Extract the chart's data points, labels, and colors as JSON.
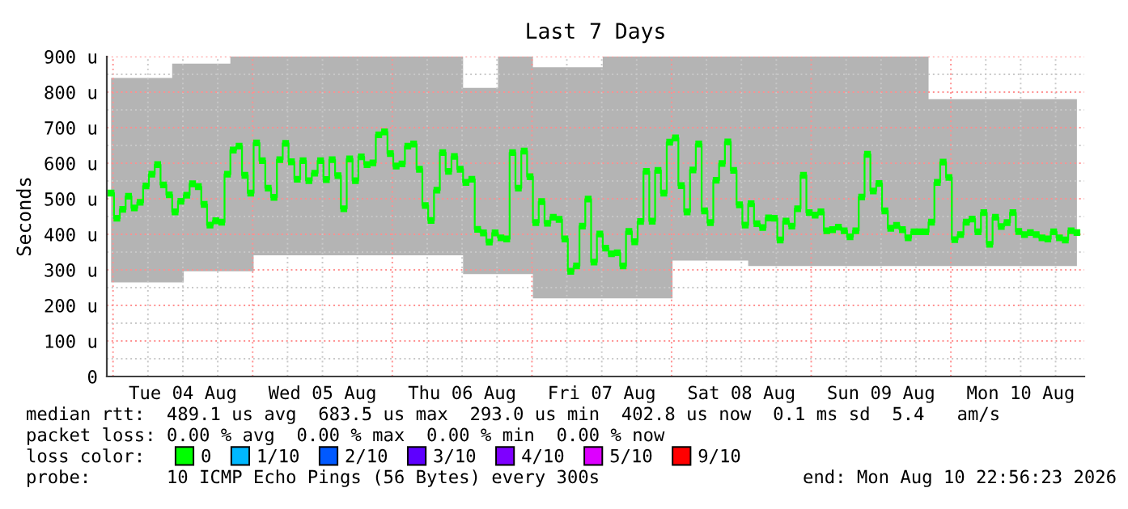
{
  "chart_data": {
    "type": "step",
    "title": "Last 7 Days",
    "ylabel": "Seconds",
    "legend_title": "loss color:",
    "annotations": [
      "median rtt:  489.1 us avg  683.5 us max  293.0 us min  402.8 us now  0.1 ms sd  5.4   am/s",
      "packet loss: 0.00 % avg  0.00 % max  0.00 % min  0.00 % now",
      "probe:       10 ICMP Echo Pings (56 Bytes) every 300s",
      "end: Mon Aug 10 22:56:23 2026"
    ],
    "xlim": [
      "2026-08-03T22:56",
      "2026-08-10T22:56"
    ],
    "xticks": [
      {
        "value": "2026-08-04T00:00",
        "label": null
      },
      {
        "value": "2026-08-04T06:00",
        "label": null
      },
      {
        "value": "2026-08-04T12:00",
        "label": "Tue 04 Aug"
      },
      {
        "value": "2026-08-04T18:00",
        "label": null
      },
      {
        "value": "2026-08-05T00:00",
        "label": null
      },
      {
        "value": "2026-08-05T06:00",
        "label": null
      },
      {
        "value": "2026-08-05T12:00",
        "label": "Wed 05 Aug"
      },
      {
        "value": "2026-08-05T18:00",
        "label": null
      },
      {
        "value": "2026-08-06T00:00",
        "label": null
      },
      {
        "value": "2026-08-06T06:00",
        "label": null
      },
      {
        "value": "2026-08-06T12:00",
        "label": "Thu 06 Aug"
      },
      {
        "value": "2026-08-06T18:00",
        "label": null
      },
      {
        "value": "2026-08-07T00:00",
        "label": null
      },
      {
        "value": "2026-08-07T06:00",
        "label": null
      },
      {
        "value": "2026-08-07T12:00",
        "label": "Fri 07 Aug"
      },
      {
        "value": "2026-08-07T18:00",
        "label": null
      },
      {
        "value": "2026-08-08T00:00",
        "label": null
      },
      {
        "value": "2026-08-08T06:00",
        "label": null
      },
      {
        "value": "2026-08-08T12:00",
        "label": "Sat 08 Aug"
      },
      {
        "value": "2026-08-08T18:00",
        "label": null
      },
      {
        "value": "2026-08-09T00:00",
        "label": null
      },
      {
        "value": "2026-08-09T06:00",
        "label": null
      },
      {
        "value": "2026-08-09T12:00",
        "label": "Sun 09 Aug"
      },
      {
        "value": "2026-08-09T18:00",
        "label": null
      },
      {
        "value": "2026-08-10T00:00",
        "label": null
      },
      {
        "value": "2026-08-10T06:00",
        "label": null
      },
      {
        "value": "2026-08-10T12:00",
        "label": "Mon 10 Aug"
      },
      {
        "value": "2026-08-10T18:00",
        "label": null
      }
    ],
    "ylim": [
      0,
      900
    ],
    "yticks": [
      0,
      {
        "value": 50,
        "label": null
      },
      {
        "value": 100,
        "label": "100 u"
      },
      {
        "value": 150,
        "label": null
      },
      {
        "value": 200,
        "label": "200 u"
      },
      {
        "value": 250,
        "label": null
      },
      {
        "value": 300,
        "label": "300 u"
      },
      {
        "value": 350,
        "label": null
      },
      {
        "value": 400,
        "label": "400 u"
      },
      {
        "value": 450,
        "label": null
      },
      {
        "value": 500,
        "label": "500 u"
      },
      {
        "value": 550,
        "label": null
      },
      {
        "value": 600,
        "label": "600 u"
      },
      {
        "value": 650,
        "label": null
      },
      {
        "value": 700,
        "label": "700 u"
      },
      {
        "value": 750,
        "label": null
      },
      {
        "value": 800,
        "label": "800 u"
      },
      {
        "value": 850,
        "label": null
      },
      {
        "value": 900,
        "label": "900 u"
      }
    ],
    "grid": true,
    "legend": "bottom",
    "marker": "square",
    "series": [
      {
        "name": "0",
        "color": "#00ff00",
        "x": [
          "2026-08-03T23:40",
          "2026-08-04T00:40",
          "2026-08-04T01:40",
          "2026-08-04T02:40",
          "2026-08-04T03:40",
          "2026-08-04T04:40",
          "2026-08-04T05:40",
          "2026-08-04T06:40",
          "2026-08-04T07:40",
          "2026-08-04T08:40",
          "2026-08-04T09:40",
          "2026-08-04T10:40",
          "2026-08-04T11:40",
          "2026-08-04T12:40",
          "2026-08-04T13:40",
          "2026-08-04T14:40",
          "2026-08-04T15:40",
          "2026-08-04T16:40",
          "2026-08-04T17:40",
          "2026-08-04T18:40",
          "2026-08-04T19:40",
          "2026-08-04T20:40",
          "2026-08-04T21:40",
          "2026-08-04T22:40",
          "2026-08-04T23:40",
          "2026-08-05T00:40",
          "2026-08-05T01:40",
          "2026-08-05T02:40",
          "2026-08-05T03:40",
          "2026-08-05T04:40",
          "2026-08-05T05:40",
          "2026-08-05T06:40",
          "2026-08-05T07:40",
          "2026-08-05T08:40",
          "2026-08-05T09:40",
          "2026-08-05T10:40",
          "2026-08-05T11:40",
          "2026-08-05T12:40",
          "2026-08-05T13:40",
          "2026-08-05T14:40",
          "2026-08-05T15:40",
          "2026-08-05T16:40",
          "2026-08-05T17:40",
          "2026-08-05T18:40",
          "2026-08-05T19:40",
          "2026-08-05T20:40",
          "2026-08-05T21:40",
          "2026-08-05T22:40",
          "2026-08-05T23:40",
          "2026-08-06T00:40",
          "2026-08-06T01:40",
          "2026-08-06T02:40",
          "2026-08-06T03:40",
          "2026-08-06T04:40",
          "2026-08-06T05:40",
          "2026-08-06T06:40",
          "2026-08-06T07:40",
          "2026-08-06T08:40",
          "2026-08-06T09:40",
          "2026-08-06T10:40",
          "2026-08-06T11:40",
          "2026-08-06T12:40",
          "2026-08-06T13:40",
          "2026-08-06T14:40",
          "2026-08-06T15:40",
          "2026-08-06T16:40",
          "2026-08-06T17:40",
          "2026-08-06T18:40",
          "2026-08-06T19:40",
          "2026-08-06T20:40",
          "2026-08-06T21:40",
          "2026-08-06T22:40",
          "2026-08-06T23:40",
          "2026-08-07T00:40",
          "2026-08-07T01:40",
          "2026-08-07T02:40",
          "2026-08-07T03:40",
          "2026-08-07T04:40",
          "2026-08-07T05:40",
          "2026-08-07T06:40",
          "2026-08-07T07:40",
          "2026-08-07T08:40",
          "2026-08-07T09:40",
          "2026-08-07T10:40",
          "2026-08-07T11:40",
          "2026-08-07T12:40",
          "2026-08-07T13:40",
          "2026-08-07T14:40",
          "2026-08-07T15:40",
          "2026-08-07T16:40",
          "2026-08-07T17:40",
          "2026-08-07T18:40",
          "2026-08-07T19:40",
          "2026-08-07T20:40",
          "2026-08-07T21:40",
          "2026-08-07T22:40",
          "2026-08-07T23:40",
          "2026-08-08T00:40",
          "2026-08-08T01:40",
          "2026-08-08T02:40",
          "2026-08-08T03:40",
          "2026-08-08T04:40",
          "2026-08-08T05:40",
          "2026-08-08T06:40",
          "2026-08-08T07:40",
          "2026-08-08T08:40",
          "2026-08-08T09:40",
          "2026-08-08T10:40",
          "2026-08-08T11:40",
          "2026-08-08T12:40",
          "2026-08-08T13:40",
          "2026-08-08T14:40",
          "2026-08-08T15:40",
          "2026-08-08T16:40",
          "2026-08-08T17:40",
          "2026-08-08T18:40",
          "2026-08-08T19:40",
          "2026-08-08T20:40",
          "2026-08-08T21:40",
          "2026-08-08T22:40",
          "2026-08-08T23:40",
          "2026-08-09T00:40",
          "2026-08-09T01:40",
          "2026-08-09T02:40",
          "2026-08-09T03:40",
          "2026-08-09T04:40",
          "2026-08-09T05:40",
          "2026-08-09T06:40",
          "2026-08-09T07:40",
          "2026-08-09T08:40",
          "2026-08-09T09:40",
          "2026-08-09T10:40",
          "2026-08-09T11:40",
          "2026-08-09T12:40",
          "2026-08-09T13:40",
          "2026-08-09T14:40",
          "2026-08-09T15:40",
          "2026-08-09T16:40",
          "2026-08-09T17:40",
          "2026-08-09T18:40",
          "2026-08-09T19:40",
          "2026-08-09T20:40",
          "2026-08-09T21:40",
          "2026-08-09T22:40",
          "2026-08-09T23:40",
          "2026-08-10T00:40",
          "2026-08-10T01:40",
          "2026-08-10T02:40",
          "2026-08-10T03:40",
          "2026-08-10T04:40",
          "2026-08-10T05:40",
          "2026-08-10T06:40",
          "2026-08-10T07:40",
          "2026-08-10T08:40",
          "2026-08-10T09:40",
          "2026-08-10T10:40",
          "2026-08-10T11:40",
          "2026-08-10T12:40",
          "2026-08-10T13:40",
          "2026-08-10T14:40",
          "2026-08-10T15:40",
          "2026-08-10T16:40",
          "2026-08-10T17:40",
          "2026-08-10T18:40",
          "2026-08-10T19:40",
          "2026-08-10T20:40",
          "2026-08-10T21:40"
        ],
        "values": [
          516,
          445,
          470,
          507,
          474,
          490,
          536,
          569,
          596,
          539,
          511,
          463,
          493,
          510,
          542,
          534,
          484,
          426,
          438,
          434,
          569,
          637,
          648,
          566,
          516,
          657,
          607,
          530,
          504,
          610,
          656,
          604,
          555,
          607,
          551,
          572,
          607,
          554,
          610,
          565,
          472,
          612,
          551,
          618,
          596,
          601,
          680,
          688,
          627,
          592,
          598,
          648,
          654,
          583,
          481,
          439,
          524,
          630,
          577,
          619,
          583,
          546,
          555,
          414,
          404,
          378,
          404,
          390,
          387,
          630,
          530,
          634,
          562,
          433,
          492,
          431,
          448,
          442,
          387,
          296,
          311,
          423,
          499,
          322,
          401,
          361,
          345,
          348,
          311,
          408,
          379,
          436,
          577,
          437,
          580,
          516,
          659,
          671,
          537,
          463,
          581,
          654,
          466,
          433,
          552,
          599,
          660,
          580,
          483,
          426,
          486,
          430,
          419,
          446,
          445,
          384,
          437,
          423,
          472,
          566,
          461,
          454,
          463,
          410,
          413,
          420,
          410,
          393,
          410,
          505,
          625,
          522,
          543,
          466,
          417,
          425,
          413,
          390,
          407,
          407,
          407,
          434,
          546,
          603,
          560,
          385,
          399,
          434,
          443,
          407,
          461,
          372,
          448,
          422,
          433,
          461,
          408,
          399,
          405,
          399,
          390,
          387,
          407,
          390,
          384,
          410,
          405
        ],
        "lower": [
          265,
          265,
          265,
          265,
          265,
          265,
          265,
          265,
          265,
          265,
          265,
          265,
          265,
          296,
          296,
          296,
          296,
          296,
          296,
          296,
          296,
          296,
          296,
          296,
          296,
          341,
          341,
          341,
          341,
          341,
          341,
          341,
          341,
          341,
          341,
          341,
          341,
          341,
          341,
          341,
          341,
          341,
          341,
          341,
          341,
          341,
          341,
          341,
          341,
          341,
          341,
          341,
          341,
          341,
          341,
          341,
          341,
          341,
          341,
          341,
          341,
          288,
          288,
          288,
          288,
          288,
          288,
          288,
          288,
          288,
          288,
          288,
          288,
          220,
          220,
          220,
          220,
          220,
          220,
          220,
          220,
          220,
          220,
          220,
          220,
          220,
          220,
          220,
          220,
          220,
          220,
          220,
          220,
          220,
          220,
          220,
          220,
          326,
          326,
          326,
          326,
          326,
          326,
          326,
          326,
          326,
          326,
          326,
          326,
          326,
          311,
          311,
          311,
          311,
          311,
          311,
          311,
          311,
          311,
          311,
          311,
          311,
          311,
          311,
          311,
          311,
          311,
          311,
          311,
          311,
          311,
          311,
          311,
          311,
          311,
          311,
          311,
          311,
          311,
          311,
          311,
          311,
          311,
          311,
          311,
          311,
          311,
          311,
          311,
          311,
          311,
          311,
          311,
          311,
          311,
          311,
          311,
          311,
          311,
          311,
          311,
          311,
          311,
          311,
          311,
          311,
          311
        ],
        "upper": [
          840,
          840,
          840,
          840,
          840,
          840,
          840,
          840,
          840,
          840,
          840,
          880,
          880,
          880,
          880,
          880,
          880,
          880,
          880,
          880,
          880,
          900,
          900,
          900,
          900,
          900,
          900,
          900,
          900,
          900,
          900,
          900,
          900,
          900,
          900,
          900,
          900,
          900,
          900,
          900,
          900,
          900,
          900,
          900,
          900,
          900,
          900,
          900,
          900,
          900,
          900,
          900,
          900,
          900,
          900,
          900,
          900,
          900,
          900,
          900,
          900,
          812,
          812,
          812,
          812,
          812,
          812,
          900,
          900,
          900,
          900,
          900,
          900,
          870,
          870,
          870,
          870,
          870,
          870,
          870,
          870,
          870,
          870,
          870,
          870,
          900,
          900,
          900,
          900,
          900,
          900,
          900,
          900,
          900,
          900,
          900,
          900,
          900,
          900,
          900,
          900,
          900,
          900,
          900,
          900,
          900,
          900,
          900,
          900,
          900,
          900,
          900,
          900,
          900,
          900,
          900,
          900,
          900,
          900,
          900,
          900,
          900,
          900,
          900,
          900,
          900,
          900,
          900,
          900,
          900,
          900,
          900,
          900,
          900,
          900,
          900,
          900,
          900,
          900,
          900,
          900,
          780,
          780,
          780,
          780,
          780,
          780,
          780,
          780,
          780,
          780,
          780,
          780,
          780,
          780,
          780,
          780,
          780,
          780,
          780,
          780,
          780,
          780,
          780,
          780,
          780,
          780
        ]
      },
      {
        "name": "1/10",
        "color": "#00b8ff"
      },
      {
        "name": "2/10",
        "color": "#0059ff"
      },
      {
        "name": "3/10",
        "color": "#5e00ff"
      },
      {
        "name": "4/10",
        "color": "#7e00ff"
      },
      {
        "name": "5/10",
        "color": "#dd00ff"
      },
      {
        "name": "9/10",
        "color": "#ff0000"
      }
    ]
  }
}
